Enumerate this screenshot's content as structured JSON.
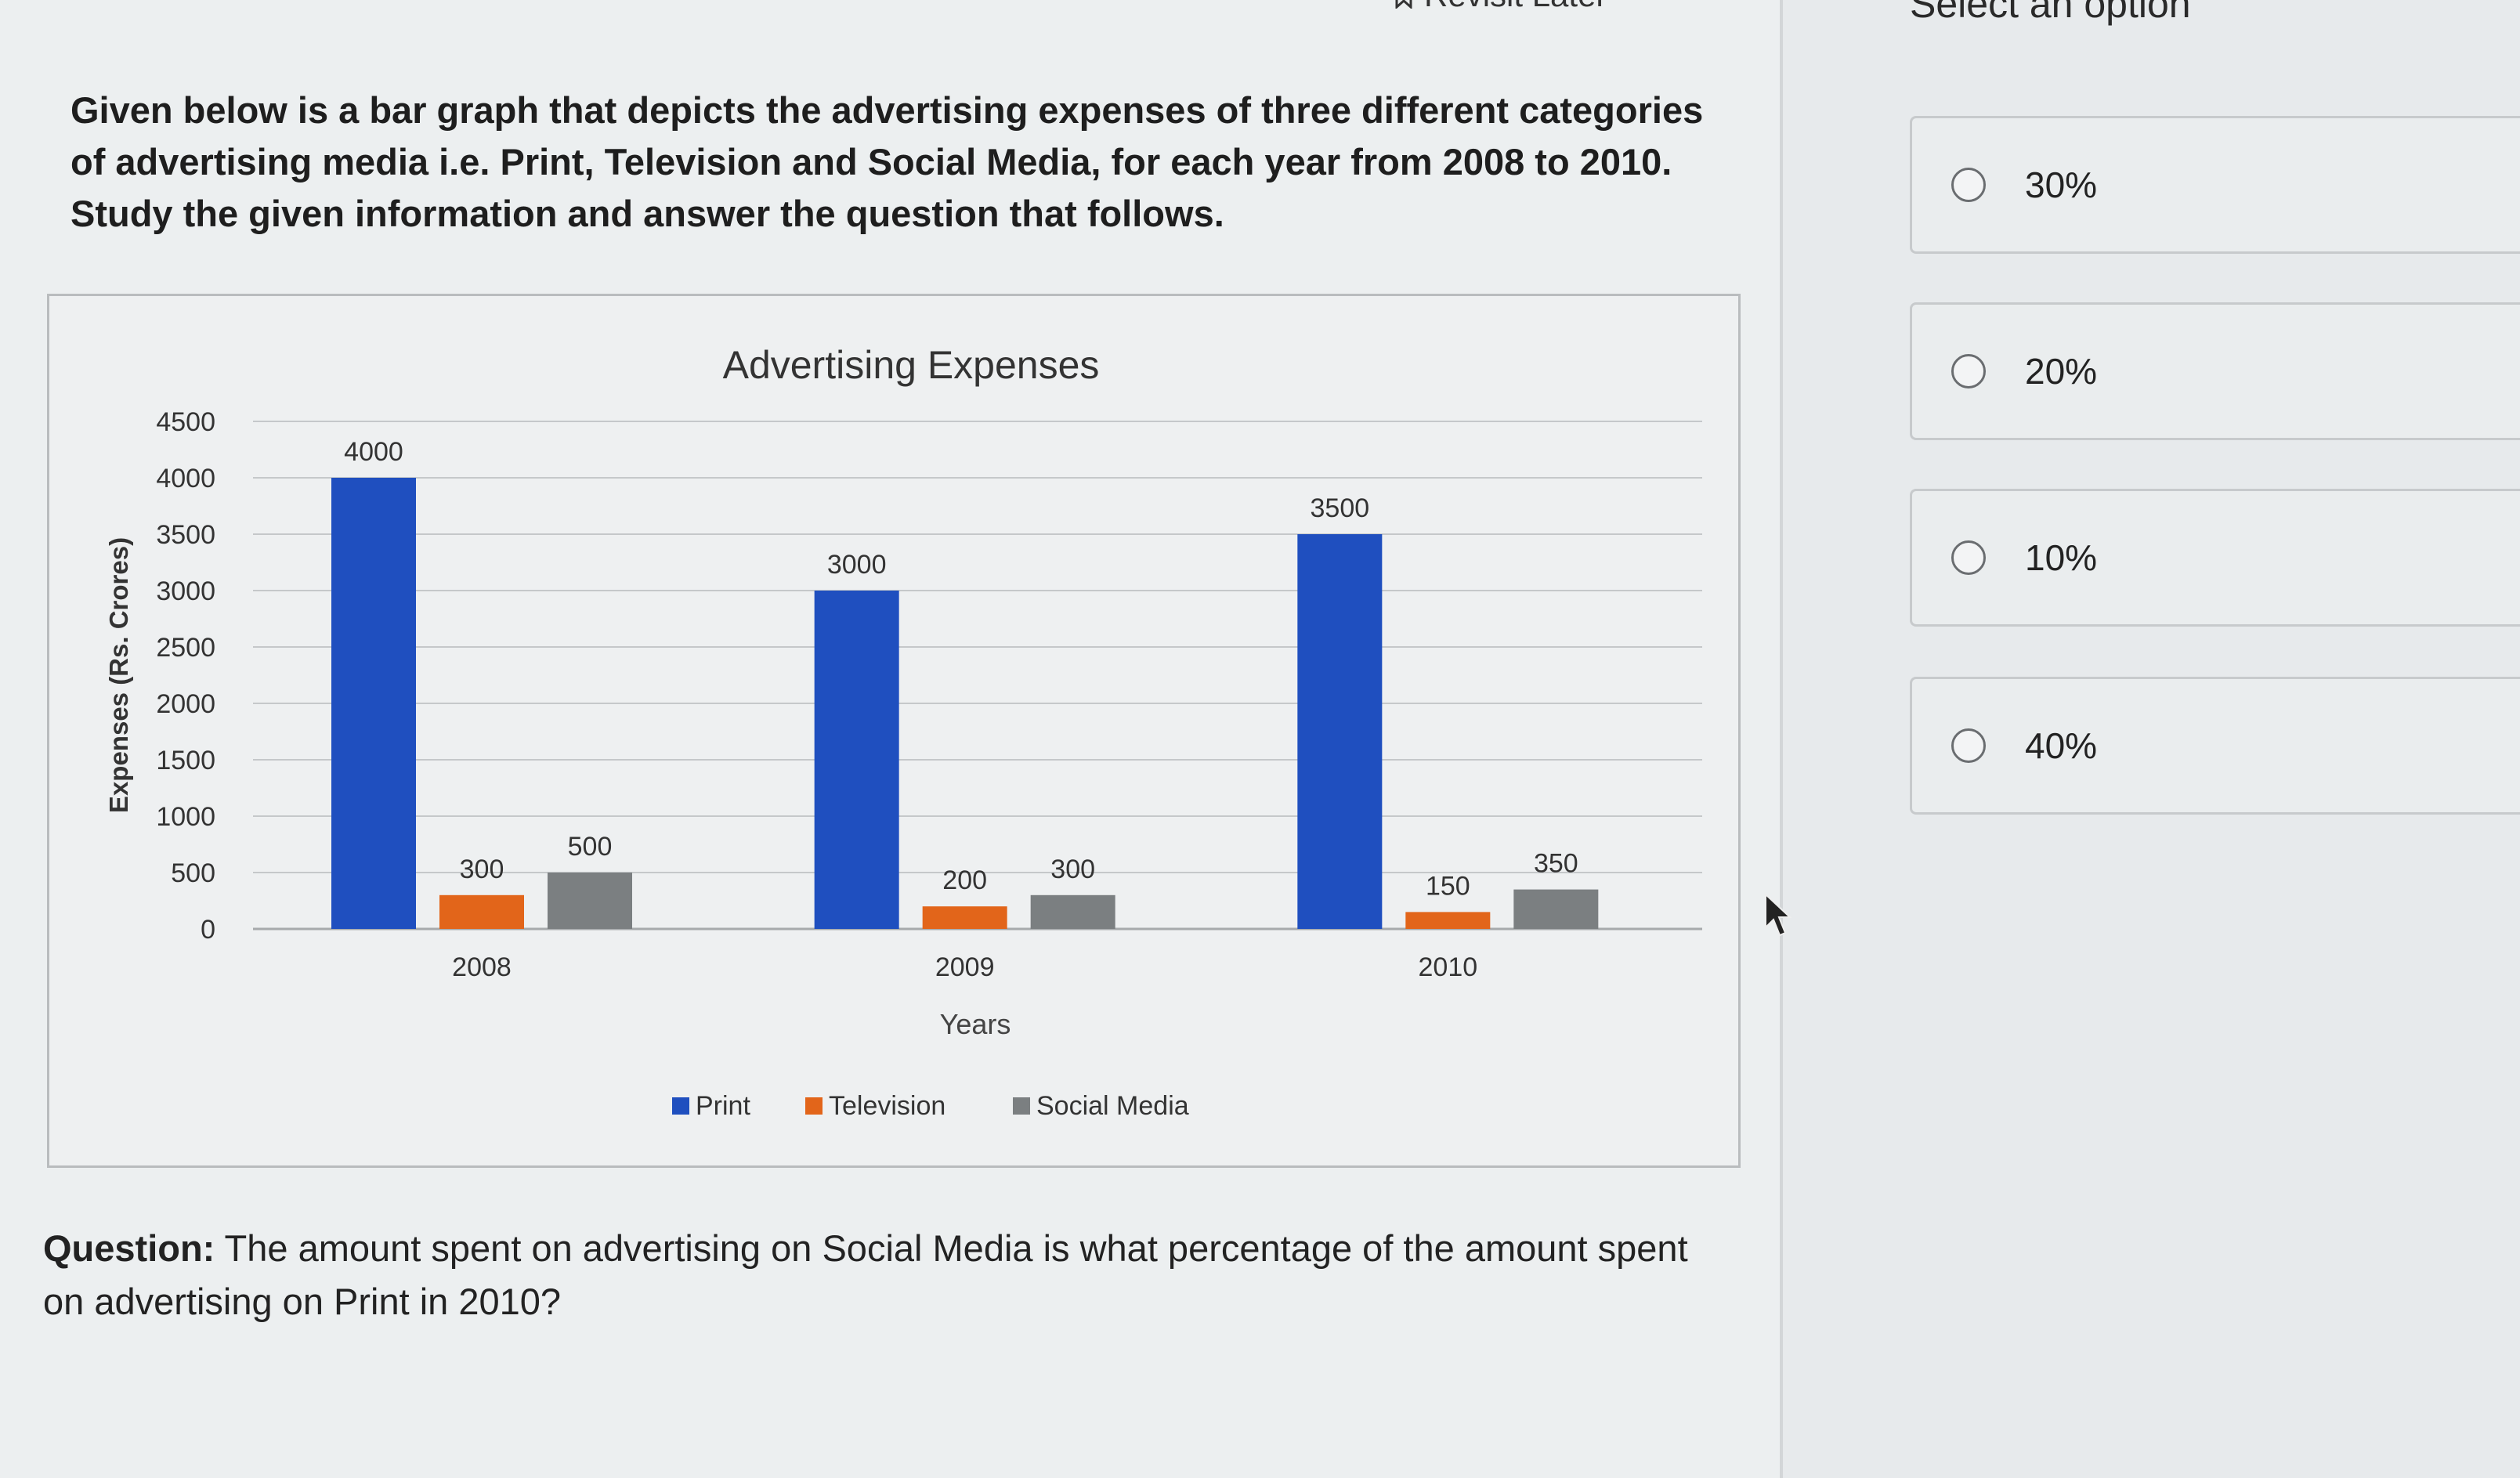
{
  "header": {
    "revisit_label": "Revisit Later"
  },
  "intro": "Given below is a bar graph that depicts the advertising expenses of three different categories of advertising media i.e. Print, Television and Social Media, for each year from 2008 to 2010. Study the given information and answer the question that follows.",
  "chart_data": {
    "type": "bar",
    "title": "Advertising Expenses",
    "xlabel": "Years",
    "ylabel": "Expenses (Rs. Crores)",
    "categories": [
      "2008",
      "2009",
      "2010"
    ],
    "ylim": [
      0,
      4500
    ],
    "yticks": [
      0,
      500,
      1000,
      1500,
      2000,
      2500,
      3000,
      3500,
      4000,
      4500
    ],
    "grid": true,
    "legend_position": "bottom",
    "series": [
      {
        "name": "Print",
        "values": [
          4000,
          3000,
          3500
        ],
        "color": "#1f4fbf"
      },
      {
        "name": "Television",
        "values": [
          300,
          200,
          150
        ],
        "color": "#e2651a"
      },
      {
        "name": "Social Media",
        "values": [
          500,
          300,
          350
        ],
        "color": "#7b7f81"
      }
    ]
  },
  "question": {
    "prefix": "Question:",
    "text": " The amount spent on advertising on Social Media is what percentage of the amount spent on advertising on Print in 2010?"
  },
  "options_panel": {
    "title": "Select an option",
    "options": [
      {
        "label": "30%"
      },
      {
        "label": "20%"
      },
      {
        "label": "10%"
      },
      {
        "label": "40%"
      }
    ]
  }
}
